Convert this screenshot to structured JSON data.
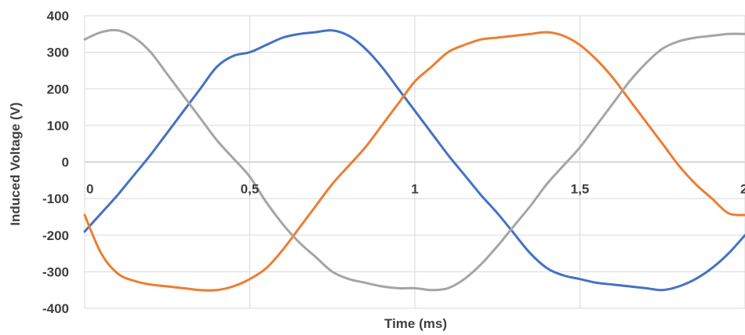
{
  "chart_data": {
    "type": "line",
    "title": "",
    "xlabel": "Time (ms)",
    "ylabel": "Induced Voltage (V)",
    "xlim": [
      0,
      2
    ],
    "ylim": [
      -400,
      400
    ],
    "x_ticks": [
      0,
      0.5,
      1,
      1.5,
      2
    ],
    "x_tick_labels": [
      "0",
      "0,5",
      "1",
      "1,5",
      "2"
    ],
    "y_ticks": [
      400,
      300,
      200,
      100,
      0,
      -100,
      -200,
      -300,
      -400
    ],
    "y_tick_labels": [
      "400",
      "300",
      "200",
      "100",
      "0",
      "-100",
      "-200",
      "-300",
      "-400"
    ],
    "grid": true,
    "legend": "none",
    "series": [
      {
        "color": "#4472c4",
        "x": [
          0,
          0.05,
          0.1,
          0.15,
          0.2,
          0.25,
          0.3,
          0.35,
          0.4,
          0.45,
          0.5,
          0.55,
          0.6,
          0.65,
          0.7,
          0.75,
          0.8,
          0.85,
          0.9,
          0.95,
          1.0,
          1.05,
          1.1,
          1.15,
          1.2,
          1.25,
          1.3,
          1.35,
          1.4,
          1.45,
          1.5,
          1.55,
          1.6,
          1.65,
          1.7,
          1.75,
          1.8,
          1.85,
          1.9,
          1.95,
          2.0
        ],
        "values": [
          -190,
          -140,
          -90,
          -35,
          20,
          80,
          140,
          200,
          260,
          290,
          300,
          320,
          340,
          350,
          355,
          360,
          345,
          310,
          260,
          200,
          140,
          80,
          20,
          -35,
          -90,
          -140,
          -195,
          -250,
          -290,
          -310,
          -320,
          -330,
          -335,
          -340,
          -345,
          -350,
          -340,
          -320,
          -290,
          -250,
          -200
        ]
      },
      {
        "color": "#ed7d31",
        "x": [
          0,
          0.05,
          0.1,
          0.15,
          0.2,
          0.25,
          0.3,
          0.35,
          0.4,
          0.45,
          0.5,
          0.55,
          0.6,
          0.65,
          0.7,
          0.75,
          0.8,
          0.85,
          0.9,
          0.95,
          1.0,
          1.05,
          1.1,
          1.15,
          1.2,
          1.25,
          1.3,
          1.35,
          1.4,
          1.45,
          1.5,
          1.55,
          1.6,
          1.65,
          1.7,
          1.75,
          1.8,
          1.85,
          1.9,
          1.95,
          2.0
        ],
        "values": [
          -145,
          -250,
          -305,
          -325,
          -335,
          -340,
          -345,
          -350,
          -350,
          -340,
          -320,
          -290,
          -240,
          -180,
          -120,
          -60,
          -10,
          40,
          100,
          160,
          220,
          260,
          300,
          320,
          335,
          340,
          345,
          350,
          355,
          345,
          320,
          280,
          230,
          170,
          110,
          50,
          -10,
          -60,
          -100,
          -140,
          -145
        ]
      },
      {
        "color": "#a5a5a5",
        "x": [
          0,
          0.05,
          0.1,
          0.15,
          0.2,
          0.25,
          0.3,
          0.35,
          0.4,
          0.45,
          0.5,
          0.55,
          0.6,
          0.65,
          0.7,
          0.75,
          0.8,
          0.85,
          0.9,
          0.95,
          1.0,
          1.05,
          1.1,
          1.15,
          1.2,
          1.25,
          1.3,
          1.35,
          1.4,
          1.45,
          1.5,
          1.55,
          1.6,
          1.65,
          1.7,
          1.75,
          1.8,
          1.85,
          1.9,
          1.95,
          2.0
        ],
        "values": [
          335,
          355,
          360,
          340,
          300,
          240,
          180,
          120,
          60,
          10,
          -40,
          -110,
          -170,
          -220,
          -260,
          -300,
          -320,
          -330,
          -340,
          -345,
          -345,
          -350,
          -345,
          -320,
          -280,
          -230,
          -175,
          -120,
          -60,
          -10,
          40,
          100,
          160,
          220,
          270,
          310,
          330,
          340,
          345,
          350,
          350
        ]
      }
    ]
  }
}
